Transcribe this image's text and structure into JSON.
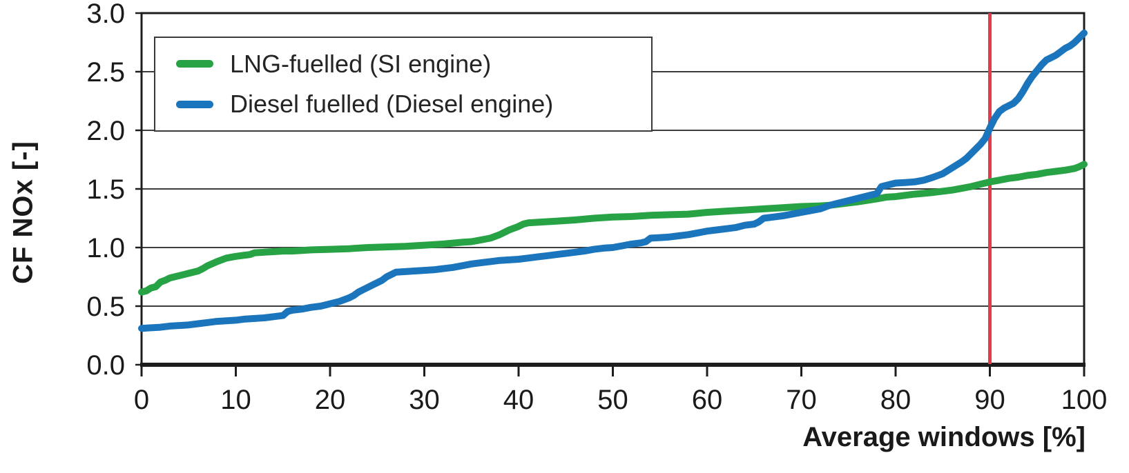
{
  "chart_data": {
    "type": "line",
    "title": "",
    "xlabel": "Average windows [%]",
    "ylabel": "CF NOx [-]",
    "xlim": [
      0,
      100
    ],
    "ylim": [
      0,
      3.0
    ],
    "x_ticks": [
      0,
      10,
      20,
      30,
      40,
      50,
      60,
      70,
      80,
      90,
      100
    ],
    "y_ticks": [
      0.0,
      0.5,
      1.0,
      1.5,
      2.0,
      2.5,
      3.0
    ],
    "y_tick_labels": [
      "0.0",
      "0.5",
      "1.0",
      "1.5",
      "2.0",
      "2.5",
      "3.0"
    ],
    "grid": "horizontal",
    "legend_position": "upper-left",
    "frame_color": "#1d1d1d",
    "grid_color": "#3c3c3c",
    "text_color": "#1a1a1a",
    "reference_line": {
      "axis": "x",
      "value": 90,
      "color": "#e23b4e"
    },
    "series": [
      {
        "name": "LNG-fuelled (SI engine)",
        "color": "#27a245",
        "points": [
          [
            0,
            0.62
          ],
          [
            0.5,
            0.63
          ],
          [
            1,
            0.655
          ],
          [
            1.5,
            0.665
          ],
          [
            2,
            0.705
          ],
          [
            2.5,
            0.72
          ],
          [
            3,
            0.74
          ],
          [
            4,
            0.76
          ],
          [
            5,
            0.78
          ],
          [
            6,
            0.8
          ],
          [
            6.5,
            0.82
          ],
          [
            7,
            0.845
          ],
          [
            8,
            0.88
          ],
          [
            9,
            0.91
          ],
          [
            10,
            0.925
          ],
          [
            11,
            0.935
          ],
          [
            11.5,
            0.94
          ],
          [
            12,
            0.955
          ],
          [
            13,
            0.96
          ],
          [
            14,
            0.965
          ],
          [
            15,
            0.97
          ],
          [
            16,
            0.97
          ],
          [
            17,
            0.975
          ],
          [
            18,
            0.98
          ],
          [
            20,
            0.985
          ],
          [
            22,
            0.99
          ],
          [
            24,
            1.0
          ],
          [
            26,
            1.005
          ],
          [
            28,
            1.01
          ],
          [
            30,
            1.02
          ],
          [
            32,
            1.03
          ],
          [
            34,
            1.045
          ],
          [
            35,
            1.05
          ],
          [
            36,
            1.065
          ],
          [
            37,
            1.08
          ],
          [
            38,
            1.11
          ],
          [
            39,
            1.15
          ],
          [
            40,
            1.18
          ],
          [
            40.5,
            1.2
          ],
          [
            41,
            1.21
          ],
          [
            42,
            1.215
          ],
          [
            44,
            1.225
          ],
          [
            46,
            1.235
          ],
          [
            48,
            1.25
          ],
          [
            50,
            1.26
          ],
          [
            52,
            1.265
          ],
          [
            54,
            1.275
          ],
          [
            56,
            1.28
          ],
          [
            58,
            1.285
          ],
          [
            60,
            1.3
          ],
          [
            62,
            1.31
          ],
          [
            64,
            1.32
          ],
          [
            66,
            1.33
          ],
          [
            68,
            1.34
          ],
          [
            70,
            1.35
          ],
          [
            72,
            1.355
          ],
          [
            73,
            1.36
          ],
          [
            74,
            1.37
          ],
          [
            76,
            1.39
          ],
          [
            78,
            1.415
          ],
          [
            79,
            1.43
          ],
          [
            80,
            1.435
          ],
          [
            82,
            1.455
          ],
          [
            84,
            1.47
          ],
          [
            86,
            1.49
          ],
          [
            87,
            1.505
          ],
          [
            88,
            1.52
          ],
          [
            89,
            1.54
          ],
          [
            90,
            1.56
          ],
          [
            91,
            1.575
          ],
          [
            92,
            1.59
          ],
          [
            93,
            1.6
          ],
          [
            94,
            1.615
          ],
          [
            95,
            1.625
          ],
          [
            96,
            1.64
          ],
          [
            97,
            1.65
          ],
          [
            98,
            1.66
          ],
          [
            99,
            1.675
          ],
          [
            99.5,
            1.69
          ],
          [
            100,
            1.71
          ]
        ]
      },
      {
        "name": "Diesel fuelled (Diesel engine)",
        "color": "#1b75bc",
        "points": [
          [
            0,
            0.31
          ],
          [
            1,
            0.315
          ],
          [
            2,
            0.32
          ],
          [
            3,
            0.33
          ],
          [
            4,
            0.335
          ],
          [
            5,
            0.34
          ],
          [
            6,
            0.35
          ],
          [
            7,
            0.36
          ],
          [
            8,
            0.37
          ],
          [
            9,
            0.375
          ],
          [
            10,
            0.38
          ],
          [
            11,
            0.39
          ],
          [
            12,
            0.395
          ],
          [
            13,
            0.4
          ],
          [
            14,
            0.41
          ],
          [
            15,
            0.42
          ],
          [
            15.5,
            0.455
          ],
          [
            16,
            0.465
          ],
          [
            17,
            0.475
          ],
          [
            18,
            0.49
          ],
          [
            19,
            0.5
          ],
          [
            20,
            0.52
          ],
          [
            21,
            0.54
          ],
          [
            22,
            0.57
          ],
          [
            22.5,
            0.59
          ],
          [
            23,
            0.62
          ],
          [
            23.5,
            0.64
          ],
          [
            24,
            0.66
          ],
          [
            24.5,
            0.68
          ],
          [
            25,
            0.7
          ],
          [
            25.5,
            0.72
          ],
          [
            26,
            0.75
          ],
          [
            26.5,
            0.77
          ],
          [
            27,
            0.79
          ],
          [
            28,
            0.795
          ],
          [
            29,
            0.8
          ],
          [
            30,
            0.805
          ],
          [
            31,
            0.81
          ],
          [
            32,
            0.82
          ],
          [
            33,
            0.83
          ],
          [
            34,
            0.845
          ],
          [
            35,
            0.86
          ],
          [
            36,
            0.87
          ],
          [
            37,
            0.88
          ],
          [
            38,
            0.89
          ],
          [
            39,
            0.895
          ],
          [
            40,
            0.9
          ],
          [
            41,
            0.91
          ],
          [
            42,
            0.92
          ],
          [
            43,
            0.93
          ],
          [
            44,
            0.94
          ],
          [
            45,
            0.95
          ],
          [
            46,
            0.96
          ],
          [
            47,
            0.97
          ],
          [
            48,
            0.985
          ],
          [
            49,
            0.995
          ],
          [
            50,
            1.0
          ],
          [
            51,
            1.015
          ],
          [
            52,
            1.03
          ],
          [
            53,
            1.04
          ],
          [
            53.5,
            1.05
          ],
          [
            54,
            1.08
          ],
          [
            55,
            1.085
          ],
          [
            56,
            1.09
          ],
          [
            57,
            1.1
          ],
          [
            58,
            1.11
          ],
          [
            59,
            1.125
          ],
          [
            60,
            1.14
          ],
          [
            61,
            1.15
          ],
          [
            62,
            1.16
          ],
          [
            63,
            1.17
          ],
          [
            64,
            1.19
          ],
          [
            65,
            1.2
          ],
          [
            65.5,
            1.22
          ],
          [
            66,
            1.25
          ],
          [
            67,
            1.26
          ],
          [
            68,
            1.27
          ],
          [
            69,
            1.285
          ],
          [
            70,
            1.3
          ],
          [
            71,
            1.315
          ],
          [
            72,
            1.33
          ],
          [
            73,
            1.36
          ],
          [
            74,
            1.38
          ],
          [
            75,
            1.4
          ],
          [
            76,
            1.42
          ],
          [
            77,
            1.44
          ],
          [
            78,
            1.46
          ],
          [
            78.5,
            1.52
          ],
          [
            79,
            1.53
          ],
          [
            80,
            1.55
          ],
          [
            81,
            1.555
          ],
          [
            82,
            1.56
          ],
          [
            83,
            1.575
          ],
          [
            84,
            1.6
          ],
          [
            85,
            1.63
          ],
          [
            86,
            1.68
          ],
          [
            87,
            1.73
          ],
          [
            87.5,
            1.76
          ],
          [
            88,
            1.8
          ],
          [
            88.5,
            1.84
          ],
          [
            89,
            1.88
          ],
          [
            89.5,
            1.93
          ],
          [
            90,
            2.02
          ],
          [
            90.5,
            2.1
          ],
          [
            91,
            2.16
          ],
          [
            91.5,
            2.19
          ],
          [
            92,
            2.21
          ],
          [
            92.5,
            2.23
          ],
          [
            93,
            2.27
          ],
          [
            93.5,
            2.33
          ],
          [
            94,
            2.4
          ],
          [
            94.5,
            2.46
          ],
          [
            95,
            2.51
          ],
          [
            95.5,
            2.56
          ],
          [
            96,
            2.6
          ],
          [
            96.5,
            2.62
          ],
          [
            97,
            2.64
          ],
          [
            97.5,
            2.67
          ],
          [
            98,
            2.7
          ],
          [
            98.5,
            2.72
          ],
          [
            99,
            2.75
          ],
          [
            99.5,
            2.79
          ],
          [
            100,
            2.83
          ]
        ]
      }
    ]
  }
}
